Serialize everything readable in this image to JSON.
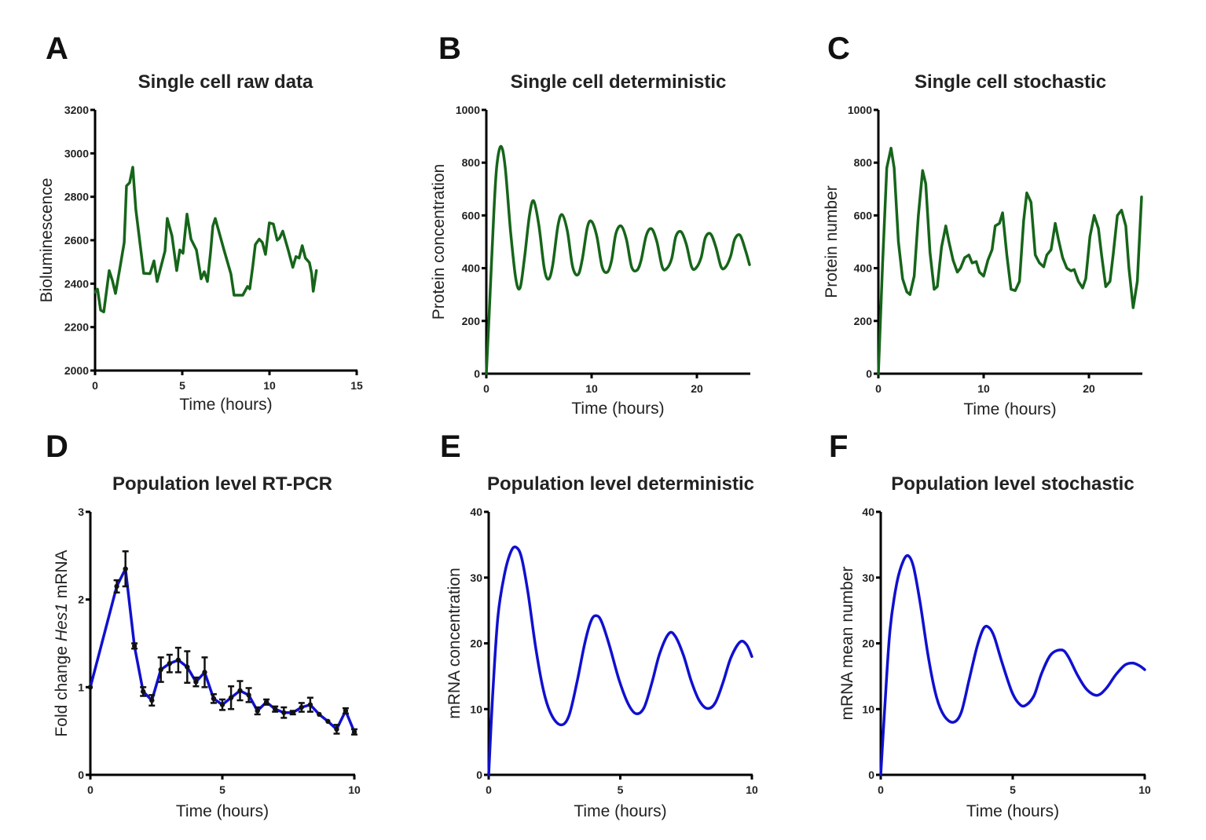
{
  "figure": {
    "colors": {
      "green": "#16651a",
      "blue": "#1010d0",
      "error_bar": "#111111",
      "axis": "#000000"
    }
  },
  "chart_data": [
    {
      "id": "A",
      "letter": "A",
      "type": "line",
      "title": "Single cell raw data",
      "xlabel": "Time (hours)",
      "ylabel": "Bioluminescence",
      "xlim": [
        0,
        15
      ],
      "ylim": [
        2000,
        3200
      ],
      "xticks": [
        0,
        5,
        10,
        15
      ],
      "yticks": [
        2000,
        2200,
        2400,
        2600,
        2800,
        3000,
        3200
      ],
      "grid": false,
      "color": "green",
      "series": [
        {
          "name": "Bioluminescence",
          "x": [
            0,
            0.14,
            0.32,
            0.5,
            0.81,
            0.99,
            1.17,
            1.44,
            1.67,
            1.8,
            1.98,
            2.16,
            2.34,
            2.79,
            3.15,
            3.38,
            3.56,
            4.01,
            4.14,
            4.41,
            4.68,
            4.86,
            5.04,
            5.27,
            5.5,
            5.81,
            6.08,
            6.26,
            6.44,
            6.62,
            6.75,
            6.89,
            7.39,
            7.79,
            7.97,
            8.47,
            8.74,
            8.87,
            9.05,
            9.19,
            9.41,
            9.59,
            9.77,
            9.99,
            10.22,
            10.44,
            10.58,
            10.76,
            11.07,
            11.34,
            11.52,
            11.7,
            11.88,
            12.06,
            12.29,
            12.42,
            12.51,
            12.69
          ],
          "y": [
            2361,
            2375,
            2278,
            2270,
            2460,
            2415,
            2355,
            2480,
            2590,
            2850,
            2865,
            2936,
            2741,
            2448,
            2446,
            2505,
            2410,
            2550,
            2700,
            2620,
            2460,
            2555,
            2540,
            2720,
            2605,
            2555,
            2422,
            2455,
            2410,
            2545,
            2665,
            2700,
            2555,
            2445,
            2347,
            2347,
            2387,
            2376,
            2485,
            2580,
            2605,
            2590,
            2535,
            2680,
            2675,
            2600,
            2610,
            2642,
            2555,
            2475,
            2525,
            2518,
            2575,
            2518,
            2497,
            2446,
            2365,
            2460
          ]
        }
      ]
    },
    {
      "id": "B",
      "letter": "B",
      "type": "line",
      "title": "Single cell deterministic",
      "xlabel": "Time (hours)",
      "ylabel": "Protein concentration",
      "xlim": [
        0,
        25
      ],
      "ylim": [
        0,
        1000
      ],
      "xticks": [
        0,
        10,
        20
      ],
      "yticks": [
        0,
        200,
        400,
        600,
        800,
        1000
      ],
      "grid": false,
      "color": "green",
      "series": [
        {
          "name": "Protein concentration",
          "x": [
            0,
            0.3,
            0.7,
            1.0,
            1.4,
            1.8,
            2.3,
            2.8,
            3.2,
            3.6,
            4.1,
            4.5,
            5.0,
            5.5,
            5.9,
            6.3,
            6.8,
            7.2,
            7.7,
            8.2,
            8.7,
            9.1,
            9.6,
            10.0,
            10.5,
            11.0,
            11.5,
            11.9,
            12.3,
            12.8,
            13.3,
            13.8,
            14.3,
            14.7,
            15.2,
            15.7,
            16.2,
            16.7,
            17.1,
            17.6,
            18.0,
            18.5,
            19.0,
            19.5,
            19.9,
            20.4,
            20.8,
            21.3,
            21.8,
            22.3,
            22.7,
            23.2,
            23.6,
            24.1,
            24.6,
            25.0
          ],
          "y": [
            0,
            250,
            600,
            790,
            862,
            780,
            540,
            360,
            325,
            430,
            600,
            655,
            560,
            400,
            358,
            410,
            560,
            603,
            540,
            405,
            375,
            430,
            555,
            577,
            520,
            405,
            385,
            430,
            530,
            560,
            510,
            405,
            392,
            430,
            525,
            549,
            500,
            405,
            397,
            435,
            520,
            538,
            490,
            405,
            400,
            440,
            515,
            530,
            480,
            405,
            403,
            445,
            510,
            525,
            470,
            413
          ]
        }
      ]
    },
    {
      "id": "C",
      "letter": "C",
      "type": "line",
      "title": "Single cell stochastic",
      "xlabel": "Time (hours)",
      "ylabel": "Protein number",
      "xlim": [
        0,
        25
      ],
      "ylim": [
        0,
        1000
      ],
      "xticks": [
        0,
        10,
        20
      ],
      "yticks": [
        0,
        200,
        400,
        600,
        800,
        1000
      ],
      "grid": false,
      "color": "green",
      "series": [
        {
          "name": "Protein number",
          "x": [
            0,
            0.4,
            0.8,
            1.2,
            1.5,
            1.9,
            2.3,
            2.7,
            3.0,
            3.4,
            3.8,
            4.2,
            4.5,
            4.9,
            5.3,
            5.6,
            6.0,
            6.4,
            6.7,
            7.1,
            7.5,
            7.8,
            8.2,
            8.6,
            8.9,
            9.3,
            9.6,
            10.0,
            10.4,
            10.8,
            11.1,
            11.5,
            11.8,
            12.2,
            12.6,
            13.0,
            13.4,
            13.8,
            14.1,
            14.5,
            14.9,
            15.3,
            15.7,
            16.0,
            16.4,
            16.8,
            17.1,
            17.5,
            17.9,
            18.3,
            18.6,
            19.0,
            19.4,
            19.7,
            20.1,
            20.5,
            20.9,
            21.2,
            21.6,
            22.0,
            22.3,
            22.7,
            23.1,
            23.5,
            23.8,
            24.2,
            24.6,
            25.0
          ],
          "y": [
            0,
            420,
            780,
            855,
            780,
            500,
            360,
            310,
            300,
            370,
            600,
            770,
            720,
            460,
            320,
            330,
            480,
            560,
            500,
            430,
            385,
            400,
            440,
            450,
            420,
            425,
            385,
            370,
            430,
            470,
            560,
            570,
            610,
            450,
            320,
            315,
            350,
            580,
            685,
            650,
            450,
            420,
            405,
            450,
            470,
            570,
            510,
            440,
            400,
            390,
            395,
            350,
            325,
            360,
            520,
            600,
            550,
            450,
            330,
            350,
            450,
            600,
            620,
            560,
            400,
            250,
            350,
            670
          ]
        }
      ]
    },
    {
      "id": "D",
      "letter": "D",
      "type": "line",
      "title": "Population level RT-PCR",
      "xlabel": "Time (hours)",
      "ylabel_parts": [
        "Fold change ",
        "Hes1",
        " mRNA"
      ],
      "xlim": [
        0,
        10
      ],
      "ylim": [
        0,
        3
      ],
      "xticks": [
        0,
        5,
        10
      ],
      "yticks": [
        0,
        1,
        2,
        3
      ],
      "grid": false,
      "color": "blue",
      "series": [
        {
          "name": "Hes1 mRNA fold change",
          "error_bars": true,
          "x": [
            0,
            1.0,
            1.33,
            1.67,
            2.0,
            2.33,
            2.67,
            3.0,
            3.33,
            3.67,
            4.0,
            4.33,
            4.67,
            5.0,
            5.33,
            5.67,
            6.0,
            6.33,
            6.67,
            7.0,
            7.33,
            7.67,
            8.0,
            8.33,
            8.67,
            9.0,
            9.33,
            9.67,
            10.0
          ],
          "y": [
            1.0,
            2.15,
            2.35,
            1.47,
            0.95,
            0.85,
            1.2,
            1.27,
            1.31,
            1.23,
            1.06,
            1.17,
            0.87,
            0.8,
            0.88,
            0.96,
            0.91,
            0.73,
            0.83,
            0.75,
            0.71,
            0.71,
            0.77,
            0.8,
            0.69,
            0.61,
            0.52,
            0.73,
            0.49
          ],
          "err": [
            0.0,
            0.07,
            0.2,
            0.03,
            0.05,
            0.06,
            0.14,
            0.1,
            0.14,
            0.18,
            0.05,
            0.17,
            0.05,
            0.06,
            0.13,
            0.11,
            0.08,
            0.04,
            0.03,
            0.03,
            0.06,
            0.02,
            0.05,
            0.08,
            0.0,
            0.0,
            0.05,
            0.03,
            0.03
          ]
        }
      ]
    },
    {
      "id": "E",
      "letter": "E",
      "type": "line",
      "title": "Population level deterministic",
      "xlabel": "Time (hours)",
      "ylabel": "mRNA concentration",
      "xlim": [
        0,
        10
      ],
      "ylim": [
        0,
        40
      ],
      "xticks": [
        0,
        5,
        10
      ],
      "yticks": [
        0,
        10,
        20,
        30,
        40
      ],
      "grid": false,
      "color": "blue",
      "series": [
        {
          "name": "mRNA concentration",
          "x": [
            0,
            0.15,
            0.35,
            0.6,
            0.85,
            1.05,
            1.25,
            1.5,
            1.8,
            2.1,
            2.4,
            2.75,
            3.05,
            3.35,
            3.65,
            3.9,
            4.1,
            4.3,
            4.6,
            4.95,
            5.3,
            5.6,
            5.9,
            6.2,
            6.5,
            6.85,
            7.1,
            7.4,
            7.7,
            8.0,
            8.3,
            8.6,
            8.9,
            9.2,
            9.55,
            9.8,
            10.0
          ],
          "y": [
            0,
            12,
            24,
            30.5,
            34,
            34.6,
            33,
            27.5,
            19,
            12.5,
            9.0,
            7.6,
            9.0,
            14,
            20,
            23.5,
            24.2,
            23.2,
            19.5,
            14.5,
            10.8,
            9.3,
            10.2,
            14,
            18.5,
            21.5,
            21.0,
            18.2,
            14.2,
            11.3,
            10.1,
            10.9,
            14.0,
            17.8,
            20.2,
            19.8,
            18.0
          ]
        }
      ]
    },
    {
      "id": "F",
      "letter": "F",
      "type": "line",
      "title": "Population level stochastic",
      "xlabel": "Time (hours)",
      "ylabel": "mRNA mean number",
      "xlim": [
        0,
        10
      ],
      "ylim": [
        0,
        40
      ],
      "xticks": [
        0,
        5,
        10
      ],
      "yticks": [
        0,
        10,
        20,
        30,
        40
      ],
      "grid": false,
      "color": "blue",
      "series": [
        {
          "name": "mRNA mean number",
          "x": [
            0,
            0.15,
            0.35,
            0.6,
            0.85,
            1.05,
            1.25,
            1.5,
            1.8,
            2.1,
            2.4,
            2.75,
            3.05,
            3.35,
            3.65,
            3.9,
            4.1,
            4.3,
            4.6,
            4.95,
            5.2,
            5.45,
            5.8,
            6.1,
            6.45,
            6.85,
            7.1,
            7.45,
            7.8,
            8.2,
            8.55,
            8.9,
            9.25,
            9.55,
            9.8,
            10.0
          ],
          "y": [
            0,
            10,
            22,
            29,
            32.5,
            33.3,
            31.5,
            26,
            18,
            12,
            9.0,
            8.0,
            9.5,
            14.5,
            19.5,
            22.3,
            22.4,
            21,
            17,
            12.8,
            11,
            10.5,
            12,
            15.5,
            18.3,
            19.0,
            18.0,
            15.2,
            13.0,
            12.1,
            13.2,
            15.2,
            16.7,
            17.0,
            16.6,
            16.0
          ]
        }
      ]
    }
  ]
}
